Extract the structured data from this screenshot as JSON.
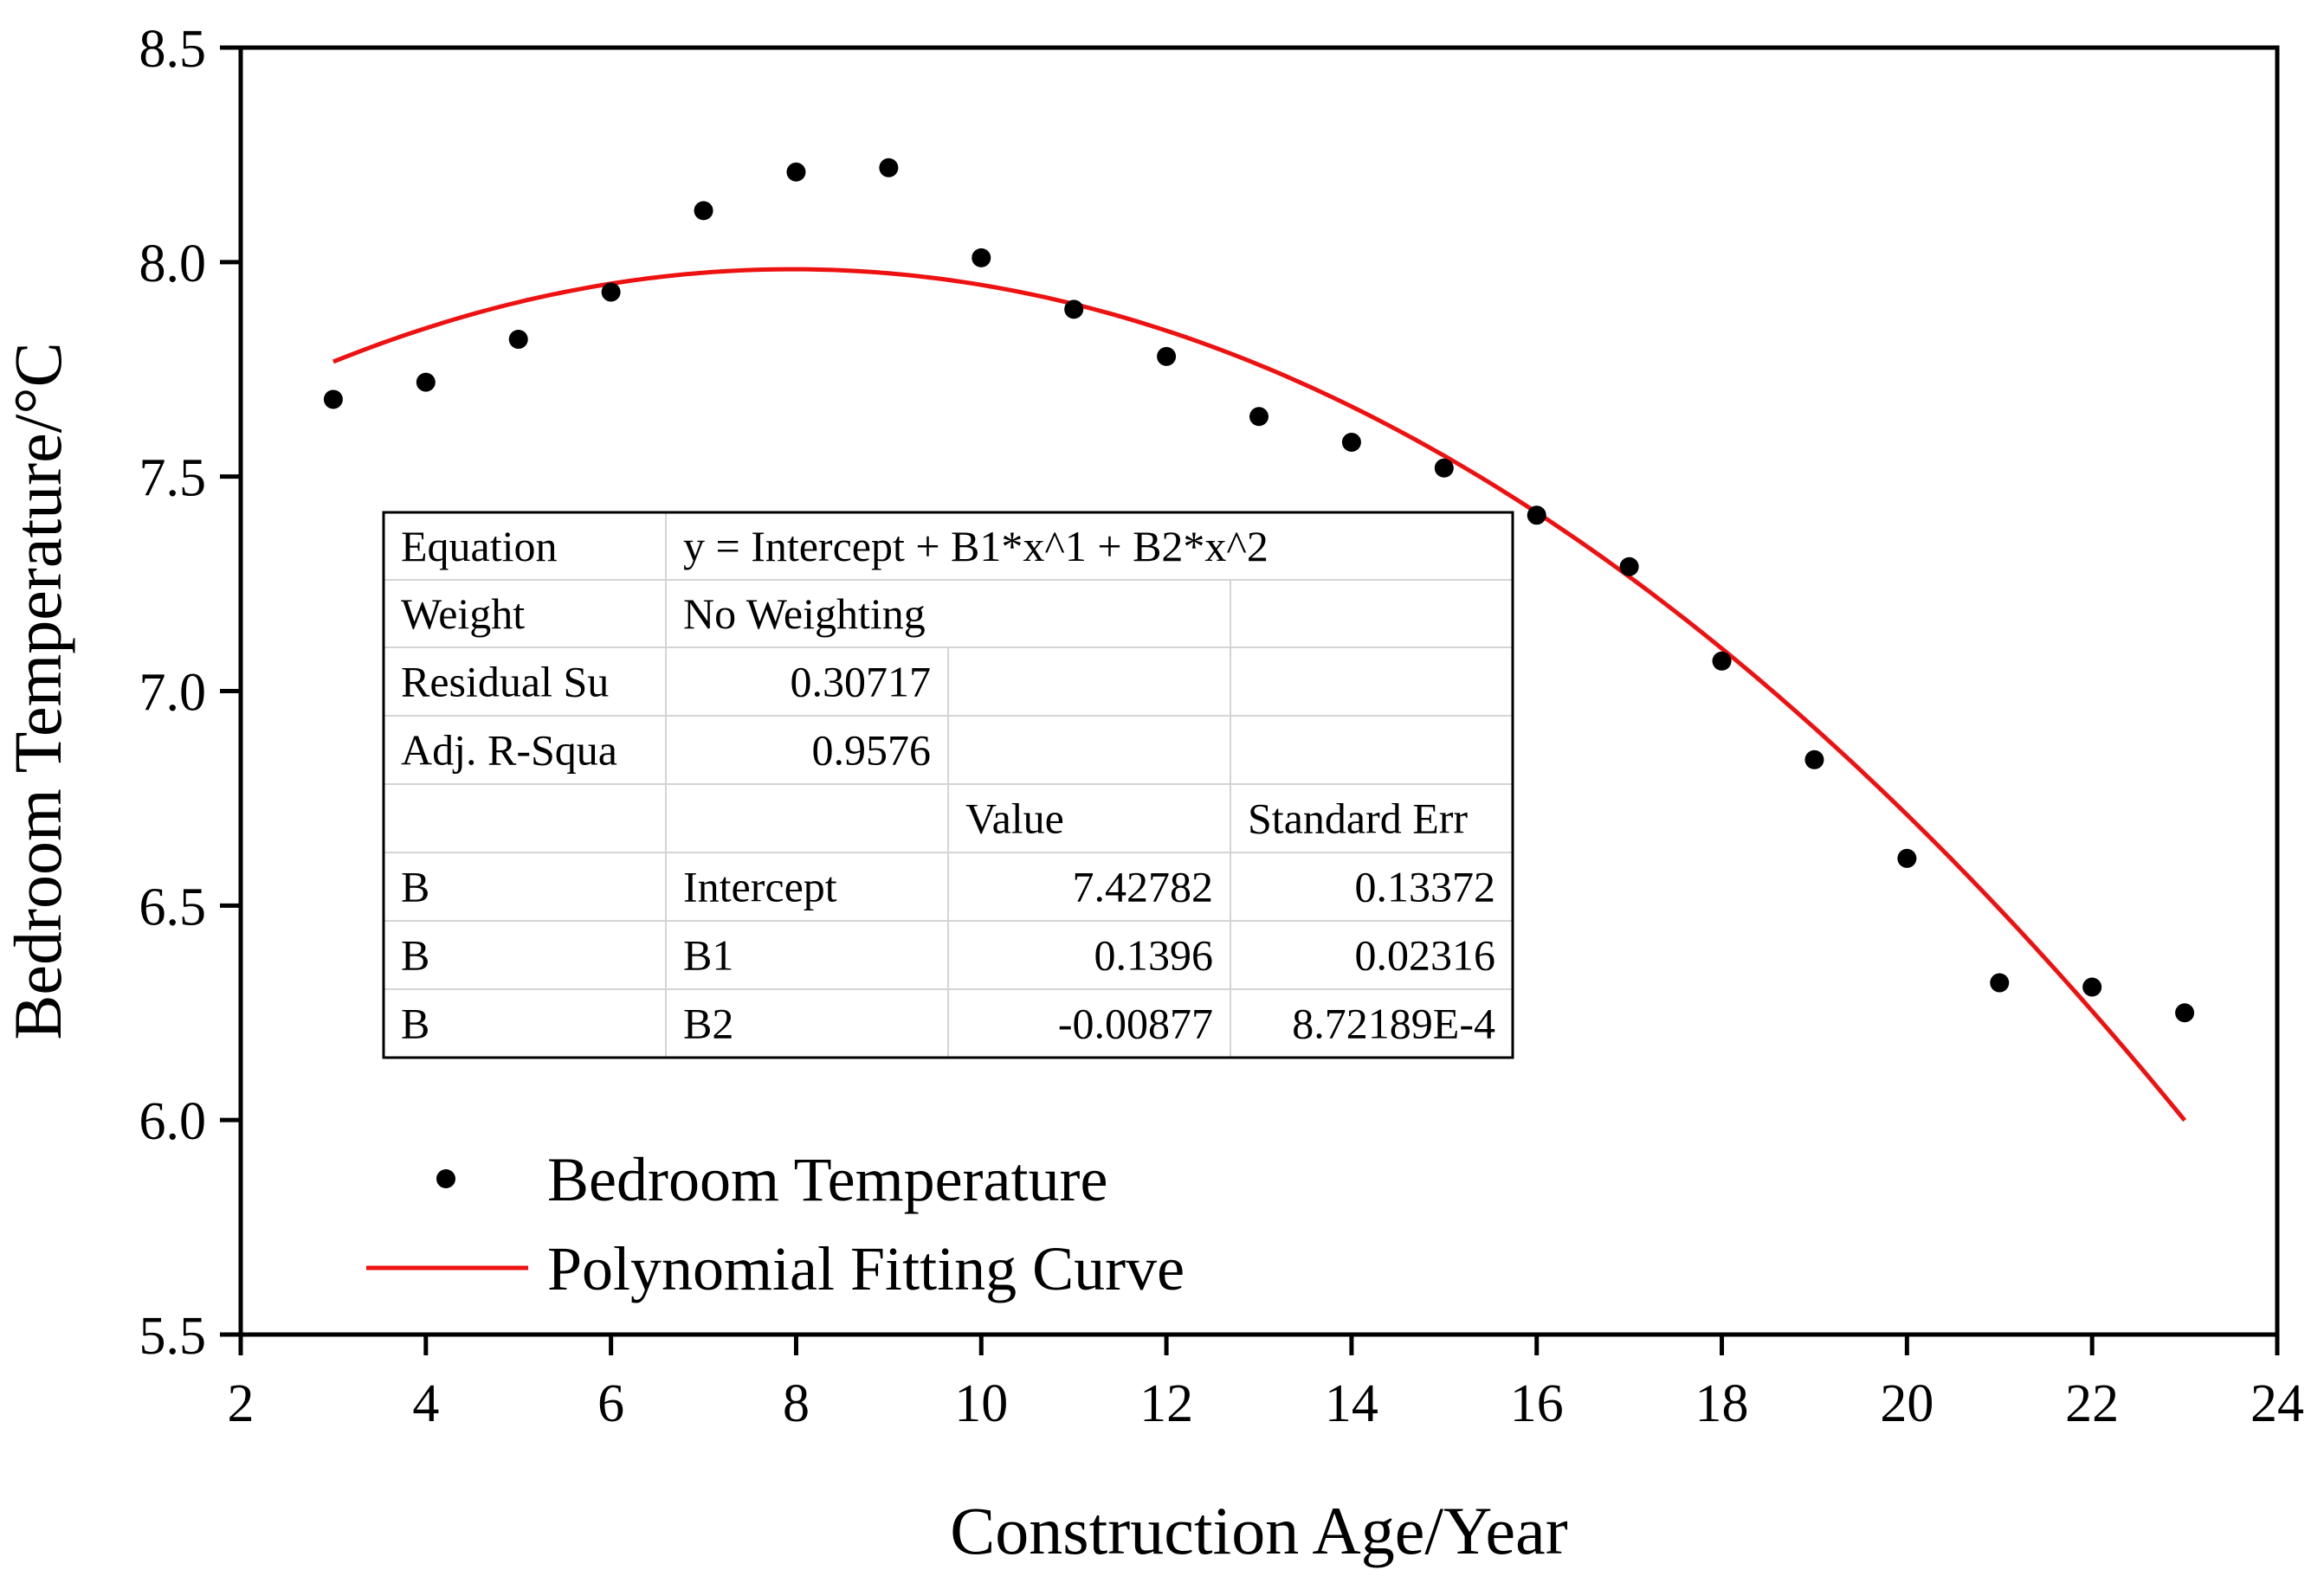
{
  "chart_data": {
    "type": "scatter",
    "title": "",
    "xlabel": "Construction Age/Year",
    "ylabel": "Bedroom Temperature/°C",
    "xlim": [
      2,
      24
    ],
    "ylim": [
      5.5,
      8.5
    ],
    "xticks": [
      2,
      4,
      6,
      8,
      10,
      12,
      14,
      16,
      18,
      20,
      22,
      24
    ],
    "xtick_labels": [
      "2",
      "4",
      "6",
      "8",
      "10",
      "12",
      "14",
      "16",
      "18",
      "20",
      "22",
      "24"
    ],
    "yticks": [
      5.5,
      6.0,
      6.5,
      7.0,
      7.5,
      8.0,
      8.5
    ],
    "ytick_labels": [
      "5.5",
      "6.0",
      "6.5",
      "7.0",
      "7.5",
      "8.0",
      "8.5"
    ],
    "grid": false,
    "series": [
      {
        "name": "Bedroom Temperature",
        "kind": "scatter",
        "color": "#000000",
        "x": [
          3,
          4,
          5,
          6,
          7,
          8,
          9,
          10,
          11,
          12,
          13,
          14,
          15,
          16,
          17,
          18,
          19,
          20,
          21,
          22,
          23
        ],
        "y": [
          7.68,
          7.72,
          7.82,
          7.93,
          8.12,
          8.21,
          8.22,
          8.01,
          7.89,
          7.78,
          7.64,
          7.58,
          7.52,
          7.41,
          7.29,
          7.07,
          6.84,
          6.61,
          6.32,
          6.31,
          6.25
        ]
      },
      {
        "name": "Polynomial Fitting Curve",
        "kind": "line",
        "color": "#ee1111",
        "x_range": [
          3,
          23
        ],
        "coefficients": {
          "intercept": 7.42782,
          "b1": 0.1396,
          "b2": -0.00877
        }
      }
    ],
    "legend": {
      "placement": "bottom-left",
      "entries": [
        "Bedroom Temperature",
        "Polynomial Fitting Curve"
      ]
    },
    "stats_table": {
      "placement": "center-left",
      "rows": [
        [
          "Equation",
          "y = Intercept + B1*x^1 + B2*x^2"
        ],
        [
          "Weight",
          "No Weighting",
          "",
          ""
        ],
        [
          "Residual Su",
          "0.30717",
          "",
          ""
        ],
        [
          "Adj. R-Squa",
          "0.9576",
          "",
          ""
        ],
        [
          "",
          "",
          "Value",
          "Standard Err"
        ],
        [
          "B",
          "Intercept",
          "7.42782",
          "0.13372"
        ],
        [
          "B",
          "B1",
          "0.1396",
          "0.02316"
        ],
        [
          "B",
          "B2",
          "-0.00877",
          "8.72189E-4"
        ]
      ]
    }
  }
}
